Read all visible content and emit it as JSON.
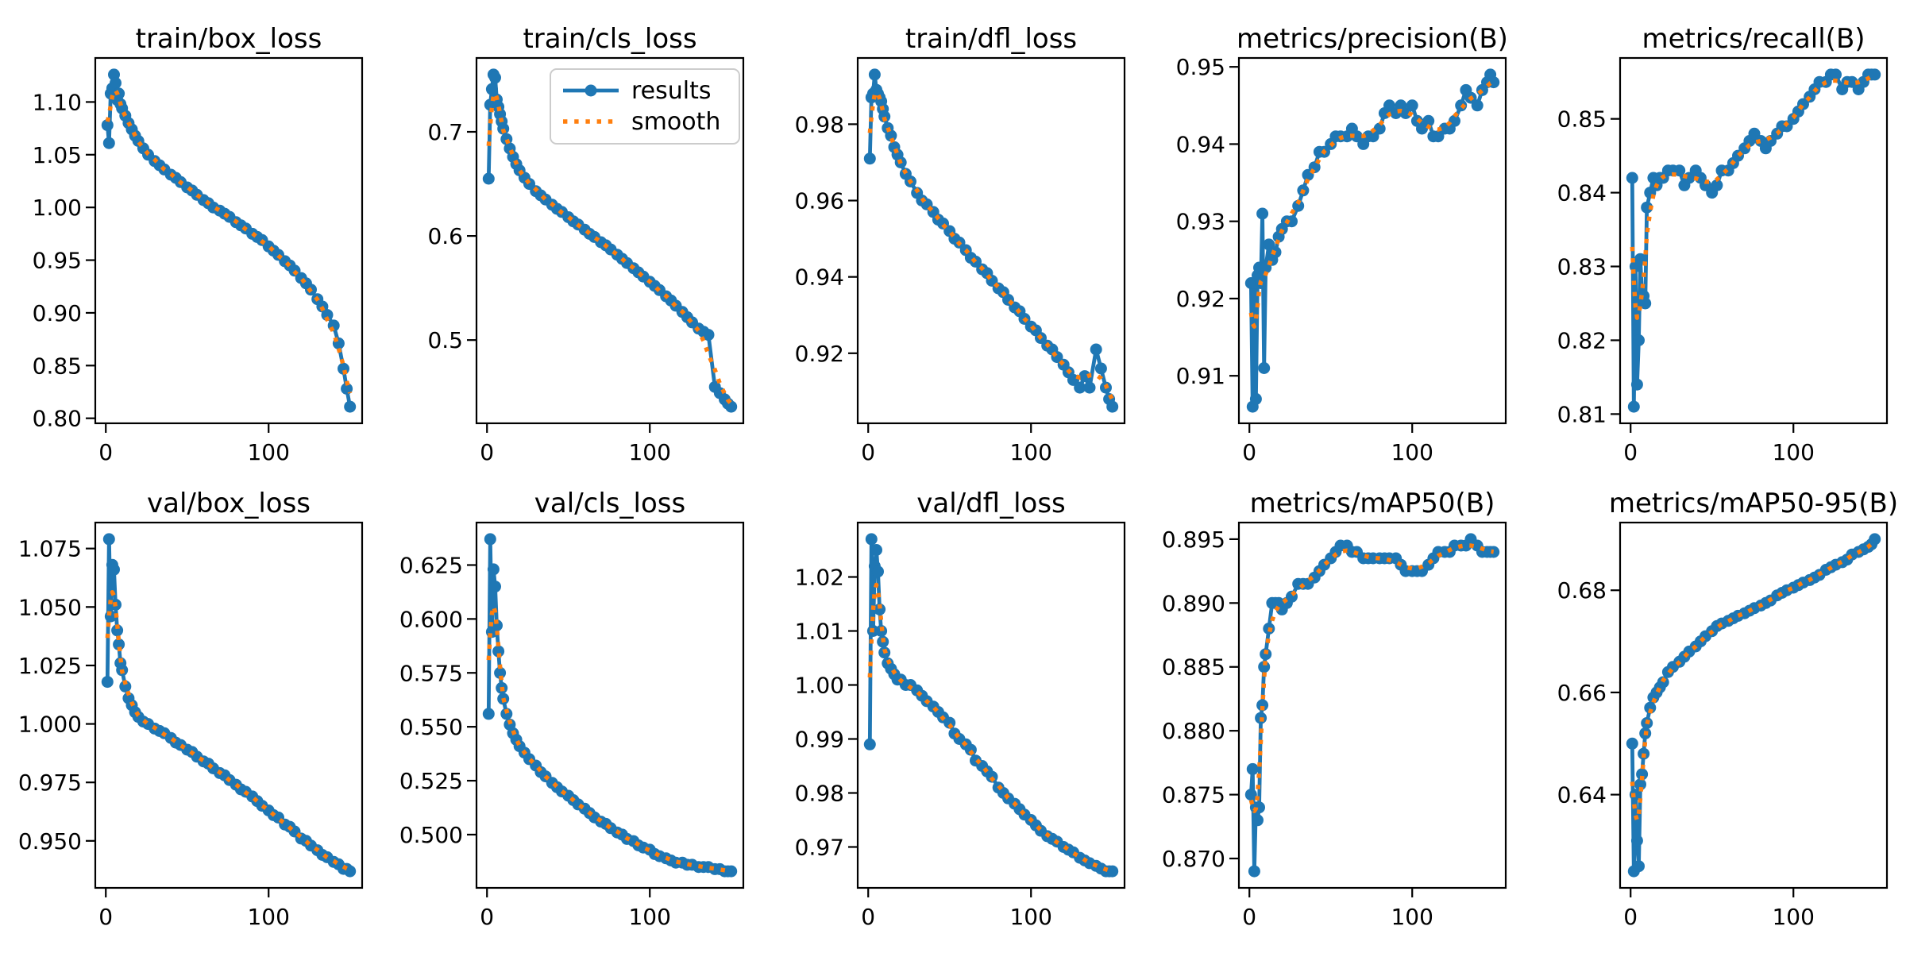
{
  "figure": {
    "background": "#ffffff",
    "colors": {
      "results_line": "#1f77b4",
      "smooth_line": "#ff7f0e",
      "text": "#000000",
      "frame": "#000000",
      "legend_border": "#cccccc",
      "legend_background": "#ffffff"
    },
    "legend": {
      "labels": [
        "results",
        "smooth"
      ]
    }
  },
  "chart_data": {
    "type": "line",
    "note": "YOLO training results figure: blue 'results' series with dot markers per epoch, orange dotted 'smooth' series is a gaussian-smoothed version of results.",
    "x_axis_label": "",
    "x": [
      1,
      2,
      3,
      4,
      5,
      6,
      7,
      8,
      9,
      10,
      12,
      14,
      16,
      18,
      20,
      23,
      26,
      30,
      33,
      36,
      40,
      43,
      46,
      50,
      53,
      56,
      60,
      63,
      66,
      70,
      73,
      76,
      80,
      83,
      86,
      90,
      93,
      96,
      100,
      103,
      106,
      110,
      113,
      116,
      120,
      123,
      126,
      130,
      133,
      136,
      140,
      143,
      146,
      148,
      150
    ],
    "x_ticks": {
      "values": [
        0,
        100
      ],
      "labels": [
        "0",
        "100"
      ]
    },
    "plots": [
      {
        "title": "train/box_loss",
        "y_ticks": {
          "values": [
            0.8,
            0.85,
            0.9,
            0.95,
            1.0,
            1.05,
            1.1
          ],
          "labels": [
            "0.80",
            "0.85",
            "0.90",
            "0.95",
            "1.00",
            "1.05",
            "1.10"
          ]
        },
        "values": [
          1.078,
          1.061,
          1.108,
          1.113,
          1.126,
          1.118,
          1.102,
          1.108,
          1.098,
          1.094,
          1.087,
          1.08,
          1.074,
          1.068,
          1.063,
          1.056,
          1.05,
          1.044,
          1.04,
          1.036,
          1.031,
          1.028,
          1.024,
          1.019,
          1.016,
          1.012,
          1.007,
          1.004,
          1.0,
          0.997,
          0.994,
          0.991,
          0.986,
          0.983,
          0.98,
          0.975,
          0.972,
          0.969,
          0.963,
          0.959,
          0.955,
          0.949,
          0.945,
          0.94,
          0.933,
          0.928,
          0.922,
          0.913,
          0.906,
          0.898,
          0.888,
          0.871,
          0.847,
          0.828,
          0.811
        ],
        "show_legend": false
      },
      {
        "title": "train/cls_loss",
        "y_ticks": {
          "values": [
            0.5,
            0.6,
            0.7
          ],
          "labels": [
            "0.5",
            "0.6",
            "0.7"
          ]
        },
        "values": [
          0.655,
          0.726,
          0.741,
          0.755,
          0.752,
          0.731,
          0.724,
          0.717,
          0.71,
          0.703,
          0.693,
          0.684,
          0.676,
          0.669,
          0.663,
          0.656,
          0.65,
          0.643,
          0.639,
          0.635,
          0.63,
          0.626,
          0.623,
          0.618,
          0.614,
          0.611,
          0.606,
          0.602,
          0.599,
          0.594,
          0.591,
          0.587,
          0.582,
          0.578,
          0.574,
          0.569,
          0.565,
          0.561,
          0.556,
          0.552,
          0.548,
          0.542,
          0.538,
          0.533,
          0.527,
          0.522,
          0.517,
          0.511,
          0.508,
          0.505,
          0.455,
          0.449,
          0.443,
          0.439,
          0.436
        ],
        "show_legend": true
      },
      {
        "title": "train/dfl_loss",
        "y_ticks": {
          "values": [
            0.92,
            0.94,
            0.96,
            0.98
          ],
          "labels": [
            "0.92",
            "0.94",
            "0.96",
            "0.98"
          ]
        },
        "values": [
          0.971,
          0.987,
          0.988,
          0.993,
          0.989,
          0.988,
          0.987,
          0.986,
          0.984,
          0.982,
          0.979,
          0.977,
          0.974,
          0.972,
          0.97,
          0.967,
          0.965,
          0.962,
          0.96,
          0.959,
          0.957,
          0.955,
          0.954,
          0.952,
          0.95,
          0.949,
          0.947,
          0.945,
          0.944,
          0.942,
          0.941,
          0.939,
          0.937,
          0.936,
          0.934,
          0.932,
          0.931,
          0.929,
          0.927,
          0.926,
          0.924,
          0.922,
          0.921,
          0.919,
          0.917,
          0.915,
          0.913,
          0.911,
          0.914,
          0.911,
          0.921,
          0.916,
          0.911,
          0.908,
          0.906
        ],
        "show_legend": false
      },
      {
        "title": "metrics/precision(B)",
        "y_ticks": {
          "values": [
            0.91,
            0.92,
            0.93,
            0.94,
            0.95
          ],
          "labels": [
            "0.91",
            "0.92",
            "0.93",
            "0.94",
            "0.95"
          ]
        },
        "values": [
          0.922,
          0.906,
          0.922,
          0.907,
          0.923,
          0.924,
          0.922,
          0.931,
          0.911,
          0.924,
          0.927,
          0.925,
          0.926,
          0.928,
          0.929,
          0.93,
          0.93,
          0.932,
          0.934,
          0.936,
          0.937,
          0.939,
          0.939,
          0.94,
          0.941,
          0.941,
          0.941,
          0.942,
          0.941,
          0.94,
          0.941,
          0.941,
          0.942,
          0.944,
          0.945,
          0.944,
          0.945,
          0.944,
          0.945,
          0.943,
          0.942,
          0.943,
          0.941,
          0.941,
          0.942,
          0.942,
          0.943,
          0.945,
          0.947,
          0.946,
          0.945,
          0.947,
          0.948,
          0.949,
          0.948
        ],
        "show_legend": false
      },
      {
        "title": "metrics/recall(B)",
        "y_ticks": {
          "values": [
            0.81,
            0.82,
            0.83,
            0.84,
            0.85
          ],
          "labels": [
            "0.81",
            "0.82",
            "0.83",
            "0.84",
            "0.85"
          ]
        },
        "values": [
          0.842,
          0.811,
          0.83,
          0.814,
          0.82,
          0.831,
          0.826,
          0.826,
          0.825,
          0.838,
          0.84,
          0.842,
          0.841,
          0.842,
          0.842,
          0.843,
          0.843,
          0.843,
          0.841,
          0.842,
          0.843,
          0.842,
          0.841,
          0.84,
          0.841,
          0.843,
          0.843,
          0.844,
          0.845,
          0.846,
          0.847,
          0.848,
          0.847,
          0.846,
          0.847,
          0.848,
          0.849,
          0.849,
          0.85,
          0.851,
          0.852,
          0.853,
          0.854,
          0.855,
          0.855,
          0.856,
          0.856,
          0.854,
          0.855,
          0.855,
          0.854,
          0.855,
          0.856,
          0.856,
          0.856
        ],
        "show_legend": false
      },
      {
        "title": "val/box_loss",
        "y_ticks": {
          "values": [
            0.95,
            0.975,
            1.0,
            1.025,
            1.05,
            1.075
          ],
          "labels": [
            "0.950",
            "0.975",
            "1.000",
            "1.025",
            "1.050",
            "1.075"
          ]
        },
        "values": [
          1.018,
          1.079,
          1.046,
          1.068,
          1.066,
          1.051,
          1.04,
          1.034,
          1.026,
          1.023,
          1.016,
          1.011,
          1.008,
          1.005,
          1.003,
          1.001,
          1.0,
          0.998,
          0.997,
          0.996,
          0.994,
          0.992,
          0.991,
          0.989,
          0.988,
          0.986,
          0.984,
          0.983,
          0.981,
          0.979,
          0.978,
          0.976,
          0.974,
          0.972,
          0.971,
          0.969,
          0.967,
          0.965,
          0.963,
          0.961,
          0.96,
          0.957,
          0.956,
          0.954,
          0.951,
          0.95,
          0.948,
          0.946,
          0.944,
          0.943,
          0.941,
          0.94,
          0.938,
          0.938,
          0.937
        ],
        "show_legend": false
      },
      {
        "title": "val/cls_loss",
        "y_ticks": {
          "values": [
            0.5,
            0.525,
            0.55,
            0.575,
            0.6,
            0.625
          ],
          "labels": [
            "0.500",
            "0.525",
            "0.550",
            "0.575",
            "0.600",
            "0.625"
          ]
        },
        "values": [
          0.556,
          0.637,
          0.594,
          0.623,
          0.615,
          0.597,
          0.585,
          0.575,
          0.568,
          0.563,
          0.556,
          0.551,
          0.547,
          0.544,
          0.541,
          0.538,
          0.535,
          0.532,
          0.529,
          0.527,
          0.524,
          0.522,
          0.52,
          0.518,
          0.516,
          0.514,
          0.512,
          0.51,
          0.508,
          0.506,
          0.505,
          0.503,
          0.501,
          0.5,
          0.498,
          0.497,
          0.495,
          0.494,
          0.493,
          0.491,
          0.49,
          0.489,
          0.488,
          0.487,
          0.487,
          0.486,
          0.486,
          0.485,
          0.485,
          0.485,
          0.484,
          0.484,
          0.483,
          0.483,
          0.483
        ],
        "show_legend": false
      },
      {
        "title": "val/dfl_loss",
        "y_ticks": {
          "values": [
            0.97,
            0.98,
            0.99,
            1.0,
            1.01,
            1.02
          ],
          "labels": [
            "0.97",
            "0.98",
            "0.99",
            "1.00",
            "1.01",
            "1.02"
          ]
        },
        "values": [
          0.989,
          1.027,
          1.01,
          1.022,
          1.025,
          1.021,
          1.014,
          1.01,
          1.008,
          1.006,
          1.004,
          1.003,
          1.002,
          1.001,
          1.001,
          1.0,
          1.0,
          0.999,
          0.998,
          0.997,
          0.996,
          0.995,
          0.994,
          0.993,
          0.991,
          0.99,
          0.989,
          0.988,
          0.986,
          0.985,
          0.984,
          0.983,
          0.981,
          0.98,
          0.979,
          0.978,
          0.977,
          0.976,
          0.975,
          0.974,
          0.973,
          0.972,
          0.9715,
          0.971,
          0.97,
          0.9695,
          0.969,
          0.968,
          0.9675,
          0.967,
          0.9665,
          0.966,
          0.9655,
          0.9655,
          0.9655
        ],
        "show_legend": false
      },
      {
        "title": "metrics/mAP50(B)",
        "y_ticks": {
          "values": [
            0.87,
            0.875,
            0.88,
            0.885,
            0.89,
            0.895
          ],
          "labels": [
            "0.870",
            "0.875",
            "0.880",
            "0.885",
            "0.890",
            "0.895"
          ]
        },
        "values": [
          0.875,
          0.877,
          0.869,
          0.874,
          0.873,
          0.874,
          0.881,
          0.882,
          0.885,
          0.886,
          0.888,
          0.89,
          0.89,
          0.89,
          0.8895,
          0.89,
          0.8905,
          0.8915,
          0.8915,
          0.8915,
          0.892,
          0.8925,
          0.893,
          0.8935,
          0.894,
          0.8945,
          0.8945,
          0.894,
          0.894,
          0.8935,
          0.8935,
          0.8935,
          0.8935,
          0.8935,
          0.8935,
          0.8935,
          0.893,
          0.8925,
          0.8925,
          0.8925,
          0.8925,
          0.893,
          0.8935,
          0.894,
          0.894,
          0.894,
          0.8945,
          0.8945,
          0.8945,
          0.895,
          0.8945,
          0.894,
          0.894,
          0.894,
          0.894
        ],
        "show_legend": false
      },
      {
        "title": "metrics/mAP50-95(B)",
        "y_ticks": {
          "values": [
            0.64,
            0.66,
            0.68
          ],
          "labels": [
            "0.64",
            "0.66",
            "0.68"
          ]
        },
        "values": [
          0.65,
          0.625,
          0.64,
          0.631,
          0.626,
          0.642,
          0.644,
          0.648,
          0.652,
          0.654,
          0.657,
          0.659,
          0.66,
          0.661,
          0.662,
          0.664,
          0.665,
          0.666,
          0.667,
          0.668,
          0.669,
          0.67,
          0.671,
          0.672,
          0.673,
          0.6735,
          0.674,
          0.6745,
          0.675,
          0.6755,
          0.676,
          0.6765,
          0.677,
          0.6775,
          0.678,
          0.679,
          0.6795,
          0.68,
          0.6805,
          0.681,
          0.6815,
          0.682,
          0.6825,
          0.683,
          0.684,
          0.6845,
          0.685,
          0.6855,
          0.686,
          0.687,
          0.6875,
          0.688,
          0.6885,
          0.689,
          0.69
        ],
        "show_legend": false
      }
    ]
  }
}
